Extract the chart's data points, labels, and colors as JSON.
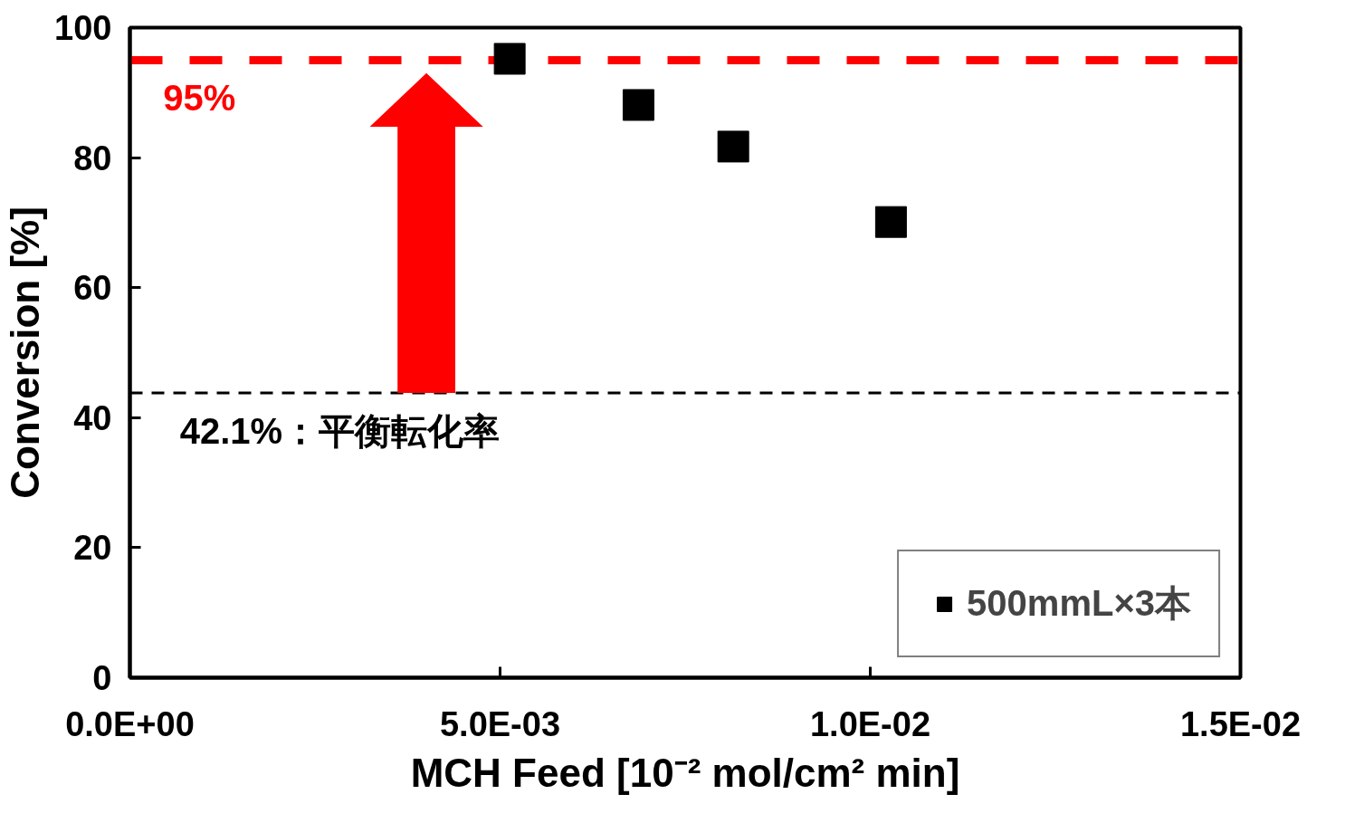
{
  "chart_data": {
    "type": "scatter",
    "xlabel": "MCH Feed [10⁻² mol/cm² min]",
    "ylabel": "Conversion [%]",
    "x": [
      0.00513,
      0.00687,
      0.00815,
      0.01028
    ],
    "series": [
      {
        "name": "500mmL×3本",
        "color": "#000000",
        "values": [
          95.2,
          88.1,
          81.7,
          70.1
        ]
      }
    ],
    "marker": "square",
    "grid": false,
    "legend": "bottom right",
    "xlim": [
      0,
      0.015
    ],
    "xticks": [
      {
        "value": 0,
        "label": "0.0E+00"
      },
      {
        "value": 0.005,
        "label": "5.0E-03"
      },
      {
        "value": 0.01,
        "label": "1.0E-02"
      },
      {
        "value": 0.015,
        "label": "1.5E-02"
      }
    ],
    "ylim": [
      0,
      100
    ],
    "yticks": [
      0,
      20,
      40,
      60,
      80,
      100
    ],
    "ref_lines": [
      {
        "axis": "y",
        "value": 95,
        "label": "95%",
        "color": "#ff0000",
        "line_style": "dashed"
      },
      {
        "axis": "y",
        "value": 43.8,
        "label": "42.1%：平衡転化率",
        "color": "#000000",
        "line_style": "dashed"
      }
    ]
  }
}
